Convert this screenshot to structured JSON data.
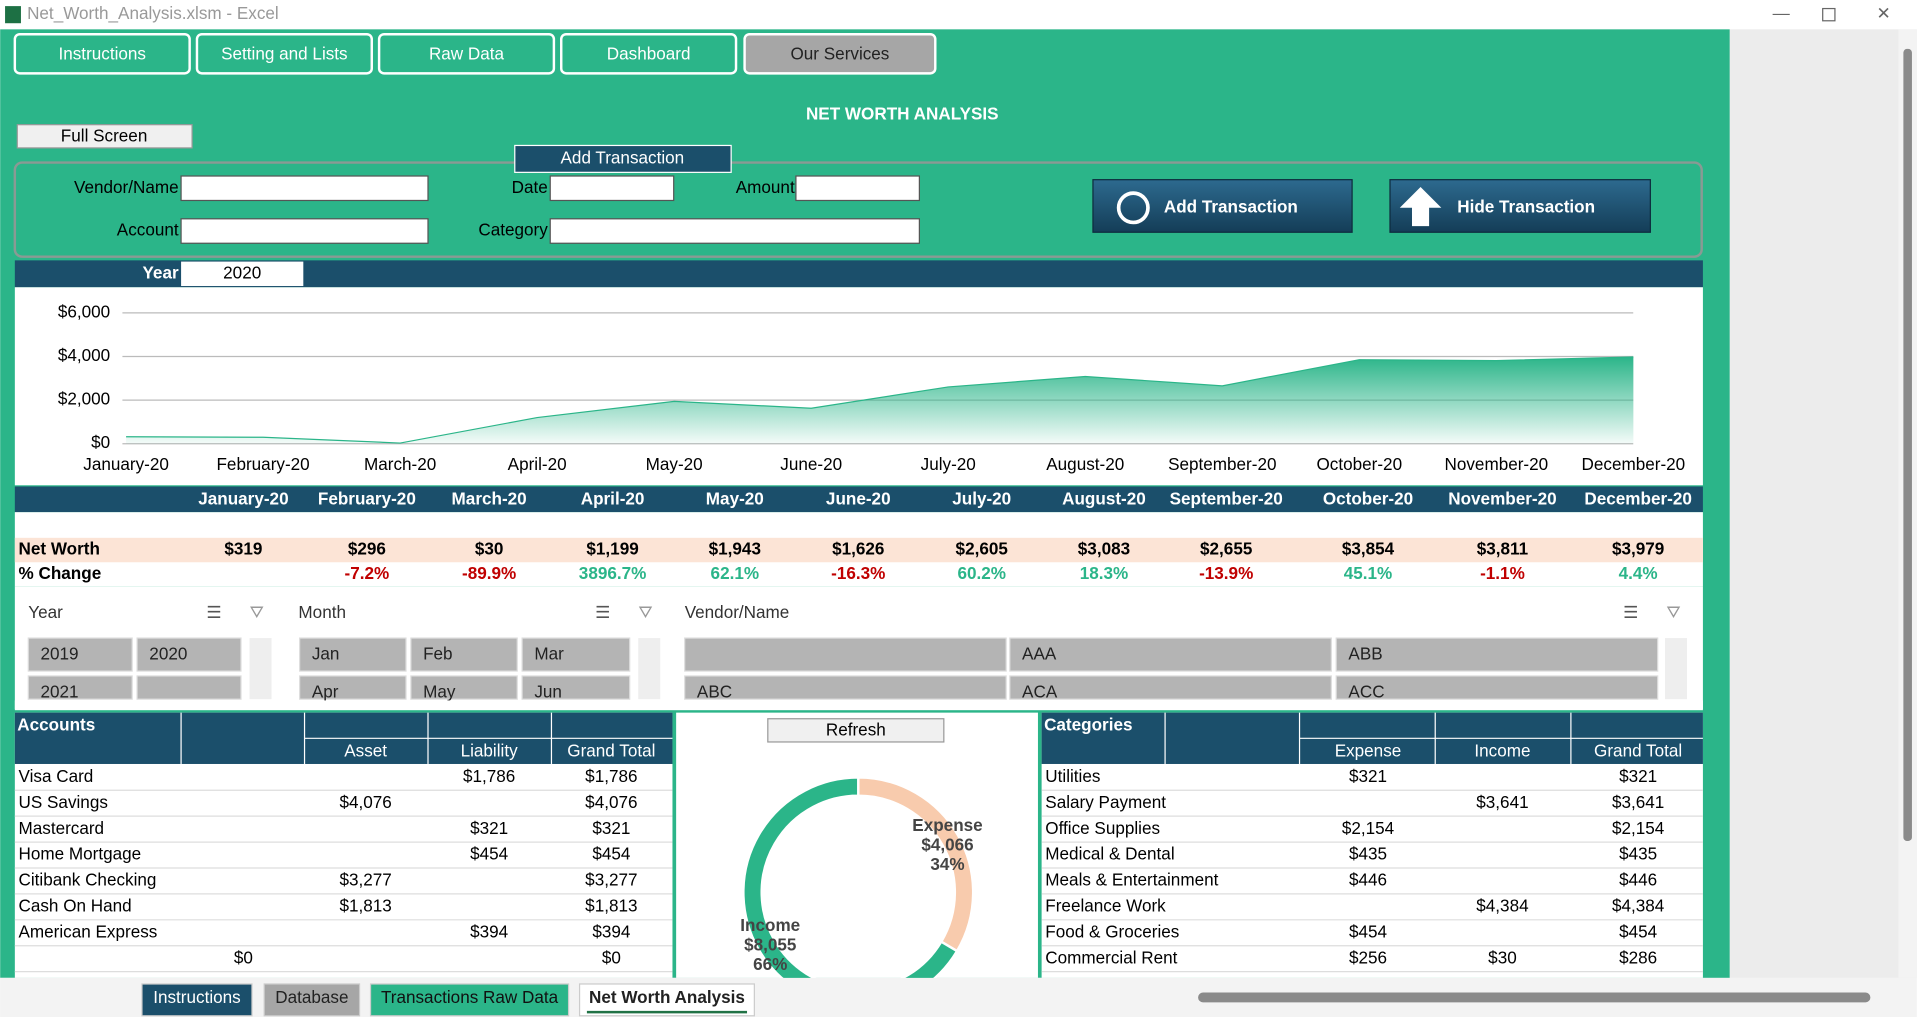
{
  "window": {
    "title": "Net_Worth_Analysis.xlsm - Excel"
  },
  "nav_buttons": [
    "Instructions",
    "Setting and Lists",
    "Raw Data",
    "Dashboard",
    "Our Services"
  ],
  "title": "NET WORTH ANALYSIS",
  "full_screen": "Full Screen",
  "form": {
    "heading": "Add Transaction",
    "fields": [
      "Vendor/Name",
      "Date",
      "Amount",
      "Account",
      "Category"
    ],
    "buttons": [
      "Add Transaction",
      "Hide Transaction"
    ]
  },
  "year": {
    "label": "Year",
    "value": "2020"
  },
  "chart_data": [
    {
      "type": "area",
      "categories": [
        "January-20",
        "February-20",
        "March-20",
        "April-20",
        "May-20",
        "June-20",
        "July-20",
        "August-20",
        "September-20",
        "October-20",
        "November-20",
        "December-20"
      ],
      "values": [
        319,
        296,
        30,
        1199,
        1943,
        1626,
        2605,
        3083,
        2655,
        3854,
        3811,
        3979
      ],
      "value_labels": [
        "$319",
        "$296",
        "$30",
        "$1,199",
        "$1,943",
        "$1,626",
        "$2,605",
        "$3,083",
        "$2,655",
        "$3,854",
        "$3,811",
        "$3,979"
      ],
      "color": "#2bb589",
      "ylim": [
        0,
        6000
      ],
      "yticks": [
        {
          "value": 0,
          "label": "$0"
        },
        {
          "value": 2000,
          "label": "$2,000"
        },
        {
          "value": 4000,
          "label": "$4,000"
        },
        {
          "value": 6000,
          "label": "$6,000"
        }
      ],
      "grid": true
    },
    {
      "type": "pie",
      "categories": [
        "Expense",
        "Income"
      ],
      "values": [
        4066,
        8055
      ],
      "value_labels": [
        "$4,066",
        "$8,055"
      ],
      "percent_labels": [
        "34%",
        "66%"
      ],
      "colors": [
        "#f8cbad",
        "#2bb589"
      ]
    }
  ],
  "summary": {
    "net_worth_label": "Net Worth",
    "change_label": "% Change",
    "changes": [
      "-7.2%",
      "-89.9%",
      "3896.7%",
      "62.1%",
      "-16.3%",
      "60.2%",
      "18.3%",
      "-13.9%",
      "45.1%",
      "-1.1%",
      "4.4%"
    ]
  },
  "slicers": [
    {
      "title": "Year",
      "items": [
        "2019",
        "2020",
        "2021"
      ]
    },
    {
      "title": "Month",
      "items": [
        "Jan",
        "Feb",
        "Mar",
        "Apr",
        "May",
        "Jun"
      ]
    },
    {
      "title": "Vendor/Name",
      "items": [
        "AAA",
        "ABB",
        "ABC",
        "ACA",
        "ACC"
      ]
    }
  ],
  "accounts": {
    "title": "Accounts",
    "columns": {
      "asset": "Asset",
      "liability": "Liability",
      "total": "Grand Total"
    },
    "rows": [
      {
        "name": "Visa Card",
        "liability": "$1,786",
        "total": "$1,786"
      },
      {
        "name": "US Savings",
        "asset": "$4,076",
        "total": "$4,076"
      },
      {
        "name": "Mastercard",
        "liability": "$321",
        "total": "$321"
      },
      {
        "name": "Home Mortgage",
        "liability": "$454",
        "total": "$454"
      },
      {
        "name": "Citibank Checking",
        "asset": "$3,277",
        "total": "$3,277"
      },
      {
        "name": "Cash On Hand",
        "asset": "$1,813",
        "total": "$1,813"
      },
      {
        "name": "American Express",
        "liability": "$394",
        "total": "$394"
      },
      {
        "other": "$0",
        "total": "$0"
      }
    ]
  },
  "refresh": "Refresh",
  "categories": {
    "title": "Categories",
    "columns": {
      "expense": "Expense",
      "income": "Income",
      "total": "Grand Total"
    },
    "rows": [
      {
        "name": "Utilities",
        "expense": "$321",
        "total": "$321"
      },
      {
        "name": "Salary Payment",
        "income": "$3,641",
        "total": "$3,641"
      },
      {
        "name": "Office Supplies",
        "expense": "$2,154",
        "total": "$2,154"
      },
      {
        "name": "Medical & Dental",
        "expense": "$435",
        "total": "$435"
      },
      {
        "name": "Meals & Entertainment",
        "expense": "$446",
        "total": "$446"
      },
      {
        "name": "Freelance Work",
        "income": "$4,384",
        "total": "$4,384"
      },
      {
        "name": "Food & Groceries",
        "expense": "$454",
        "total": "$454"
      },
      {
        "name": "Commercial Rent",
        "expense": "$256",
        "income": "$30",
        "total": "$286"
      }
    ]
  },
  "sheet_tabs": [
    "Instructions",
    "Database",
    "Transactions Raw Data",
    "Net Worth Analysis"
  ]
}
